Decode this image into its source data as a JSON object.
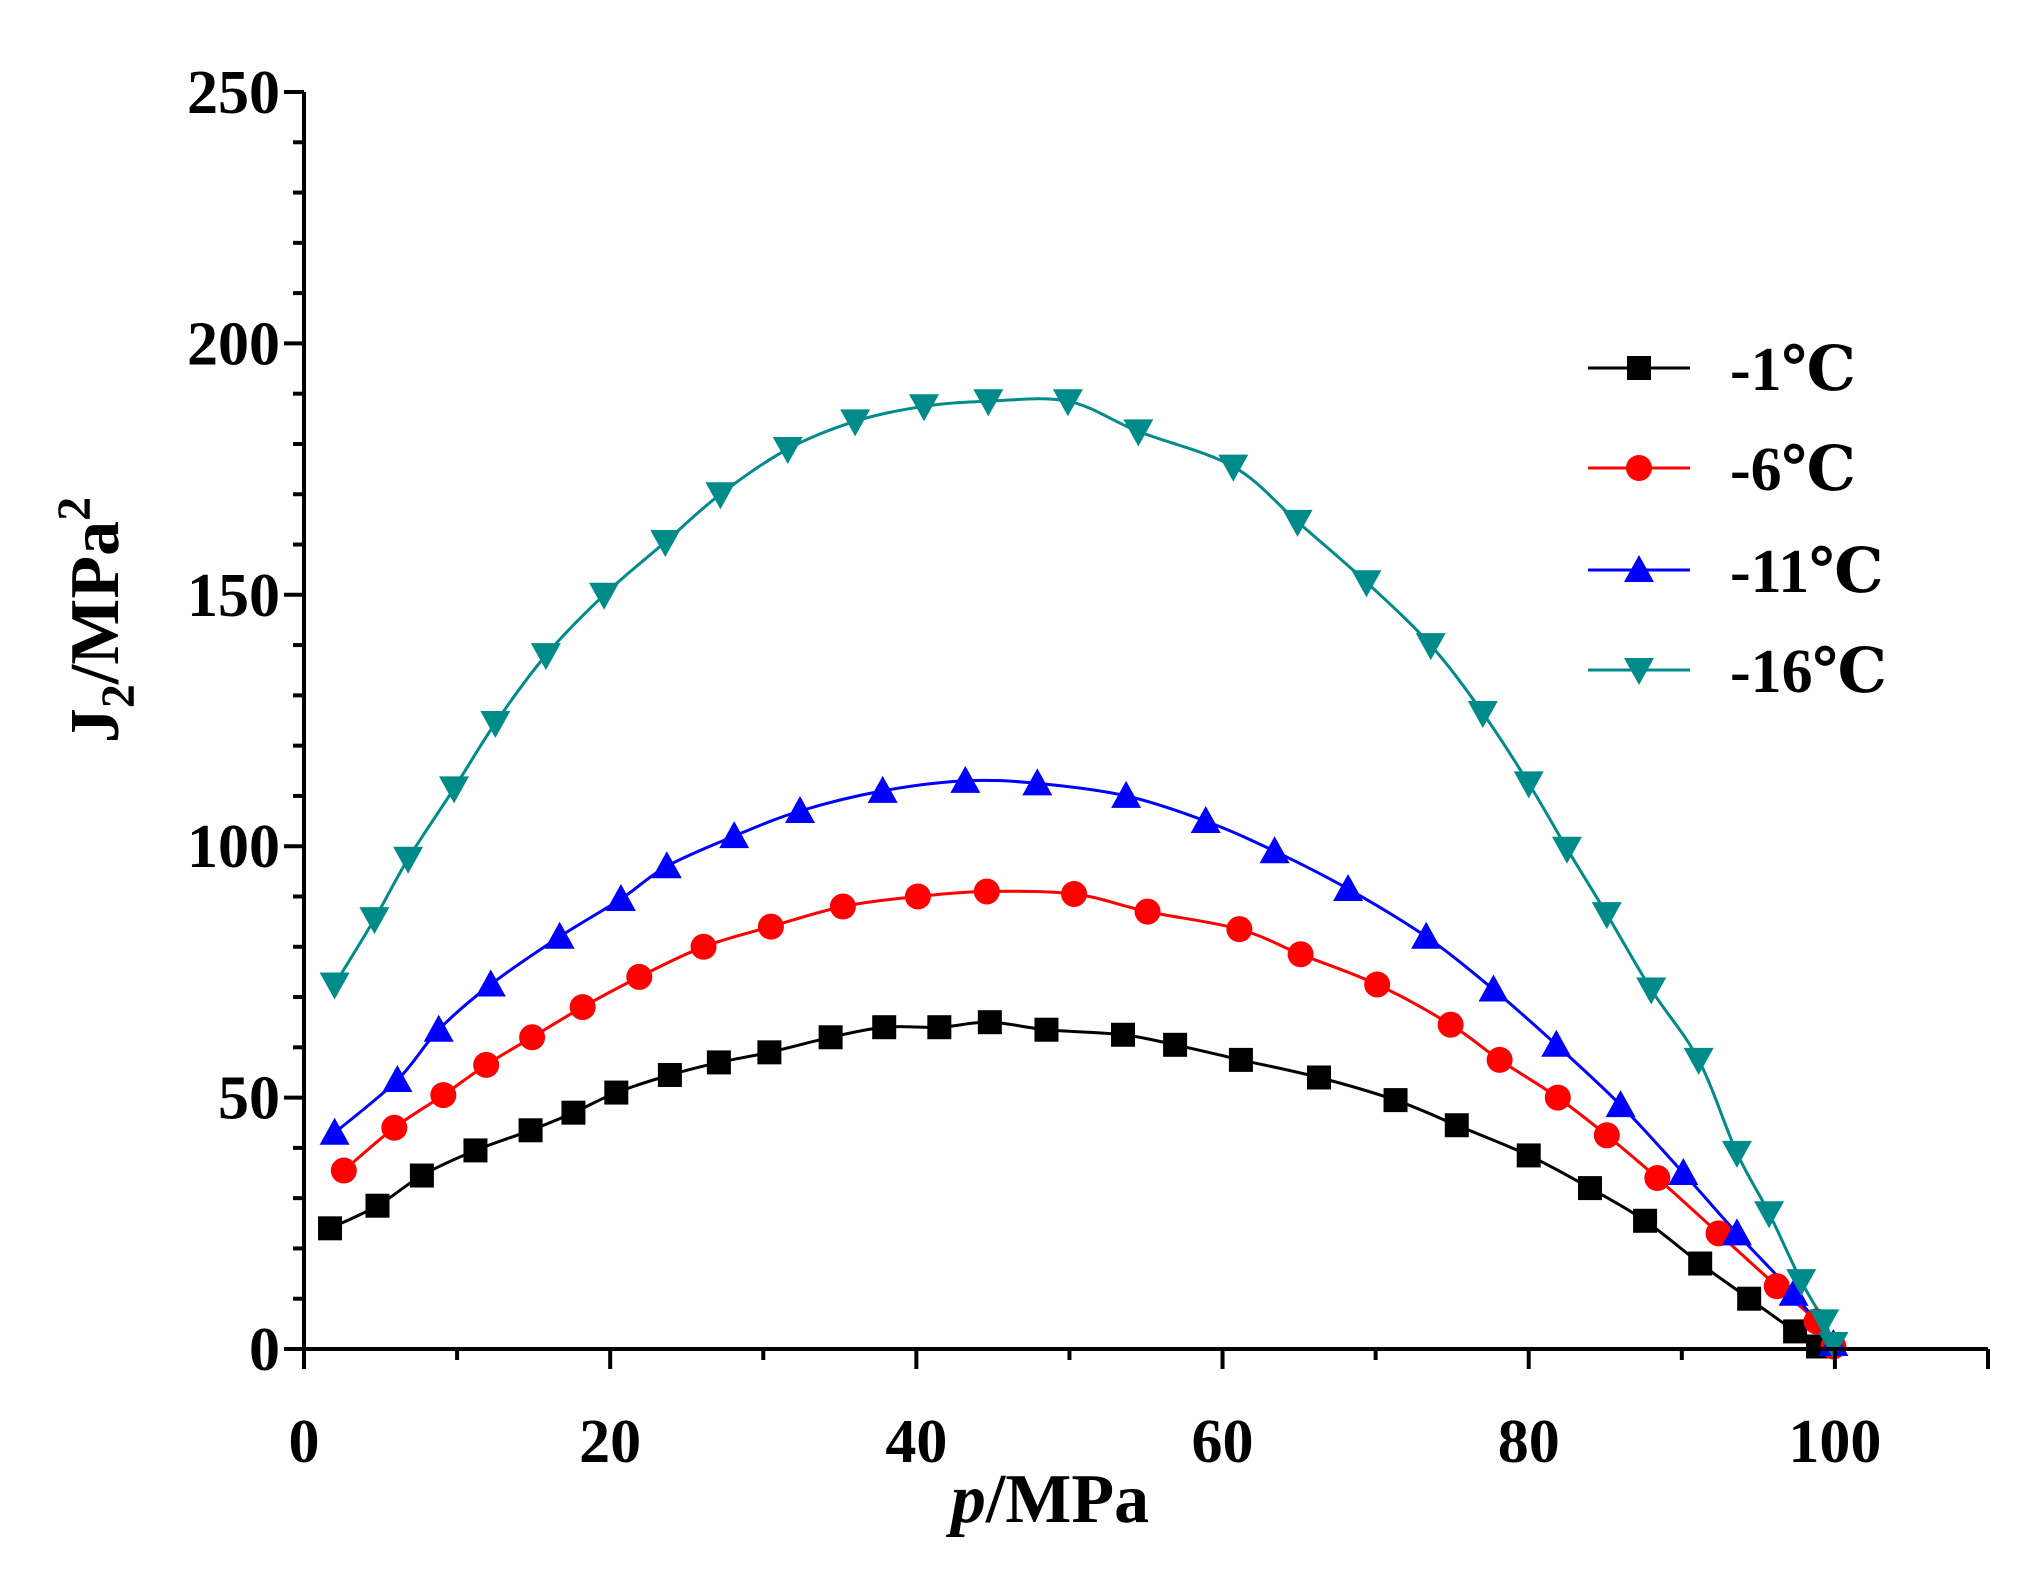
{
  "chart_data": {
    "type": "line",
    "title": "",
    "xlabel_italic": "p",
    "xlabel_rest": "/MPa",
    "ylabel_main": "J",
    "ylabel_sub": "2",
    "ylabel_mid": "/MPa",
    "ylabel_sup": "2",
    "xlim": [
      0,
      110
    ],
    "ylim": [
      0,
      250
    ],
    "xticks": [
      0,
      20,
      40,
      60,
      80,
      100
    ],
    "yticks": [
      0,
      50,
      100,
      150,
      200,
      250
    ],
    "xtick_labels": [
      "0",
      "20",
      "40",
      "60",
      "80",
      "100"
    ],
    "ytick_labels": [
      "0",
      "50",
      "100",
      "150",
      "200",
      "250"
    ],
    "grid": false,
    "legend_position": "top-right",
    "series": [
      {
        "name": "-1℃",
        "color": "#000000",
        "marker": "square",
        "x": [
          1.7,
          4.8,
          7.7,
          11.2,
          14.8,
          17.6,
          20.4,
          23.9,
          27.1,
          30.4,
          34.4,
          37.9,
          41.5,
          44.8,
          48.5,
          53.5,
          56.9,
          61.2,
          66.3,
          71.3,
          75.3,
          80.0,
          84.0,
          87.6,
          91.2,
          94.4,
          97.4,
          98.9
        ],
        "y": [
          24.0,
          28.5,
          34.5,
          39.5,
          43.5,
          47.0,
          51.0,
          54.5,
          57.0,
          59.0,
          62.0,
          64.0,
          64.0,
          65.0,
          63.5,
          62.5,
          60.5,
          57.5,
          54.0,
          49.5,
          44.5,
          38.5,
          32.0,
          25.5,
          17.0,
          10.0,
          3.5,
          0.5
        ]
      },
      {
        "name": "-6℃",
        "color": "#ff0000",
        "marker": "circle",
        "x": [
          2.6,
          5.9,
          9.1,
          11.9,
          14.9,
          18.2,
          21.9,
          26.1,
          30.5,
          35.2,
          40.1,
          44.6,
          50.3,
          55.1,
          61.1,
          65.1,
          70.1,
          74.9,
          78.1,
          81.9,
          85.1,
          88.4,
          92.4,
          96.2,
          98.8,
          99.9
        ],
        "y": [
          35.5,
          44.0,
          50.5,
          56.5,
          62.0,
          68.0,
          74.0,
          80.0,
          84.0,
          88.0,
          90.0,
          91.0,
          90.5,
          87.0,
          83.5,
          78.5,
          72.5,
          64.5,
          57.5,
          50.0,
          42.5,
          34.0,
          23.0,
          12.5,
          5.5,
          0.5
        ]
      },
      {
        "name": "-11℃",
        "color": "#0000ff",
        "marker": "triangle-up",
        "x": [
          2.0,
          6.1,
          8.8,
          12.2,
          16.7,
          20.7,
          23.7,
          28.1,
          32.4,
          37.8,
          43.2,
          47.9,
          53.7,
          58.9,
          63.4,
          68.2,
          73.3,
          77.7,
          81.8,
          86.0,
          90.1,
          93.6,
          97.3,
          99.9
        ],
        "y": [
          43.0,
          53.5,
          63.5,
          72.5,
          82.0,
          89.5,
          96.0,
          102.0,
          107.0,
          111.0,
          113.0,
          112.5,
          110.0,
          105.0,
          99.0,
          91.5,
          82.0,
          71.5,
          60.5,
          48.5,
          35.0,
          23.0,
          11.0,
          1.0
        ]
      },
      {
        "name": "-16℃",
        "color": "#008b8b",
        "marker": "triangle-down",
        "x": [
          2.0,
          4.6,
          6.8,
          9.8,
          12.5,
          15.8,
          19.6,
          23.6,
          27.2,
          31.6,
          36.0,
          40.5,
          44.7,
          49.9,
          54.5,
          60.7,
          64.9,
          69.4,
          73.6,
          77.0,
          80.0,
          82.5,
          85.1,
          88.0,
          91.1,
          93.6,
          95.7,
          97.8,
          99.3,
          99.9
        ],
        "y": [
          72.5,
          85.5,
          97.5,
          111.5,
          124.5,
          138.0,
          150.0,
          160.5,
          170.0,
          179.0,
          184.5,
          187.5,
          188.5,
          188.5,
          182.5,
          175.5,
          164.5,
          152.5,
          140.0,
          126.5,
          112.5,
          99.5,
          86.5,
          71.5,
          57.5,
          39.0,
          27.0,
          13.5,
          5.5,
          1.0
        ]
      }
    ]
  }
}
